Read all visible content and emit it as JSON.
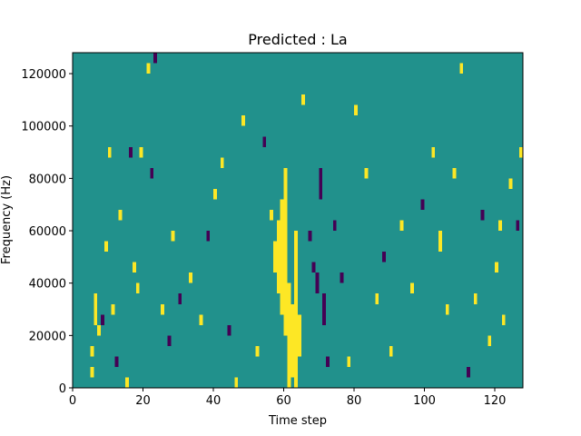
{
  "chart_data": {
    "type": "heatmap",
    "title": "Predicted : La",
    "xlabel": "Time step",
    "ylabel": "Frequency (Hz)",
    "xlim": [
      0,
      128
    ],
    "ylim": [
      0,
      128000
    ],
    "xticks": [
      0,
      20,
      40,
      60,
      80,
      100,
      120
    ],
    "yticks": [
      0,
      20000,
      40000,
      60000,
      80000,
      100000,
      120000
    ],
    "levels": {
      "low": -1,
      "mid": 0,
      "high": 1
    },
    "colormap": {
      "low": "#440154",
      "mid": "#21918c",
      "high": "#fde725"
    },
    "background_value": 0,
    "n_time_steps": 128,
    "n_freq_bins": 64,
    "cells": [
      {
        "t": 5,
        "f0": 4000,
        "f1": 8000,
        "v": 1
      },
      {
        "t": 5,
        "f0": 12000,
        "f1": 16000,
        "v": 1
      },
      {
        "t": 6,
        "f0": 24000,
        "f1": 36000,
        "v": 1
      },
      {
        "t": 7,
        "f0": 20000,
        "f1": 24000,
        "v": 1
      },
      {
        "t": 8,
        "f0": 24000,
        "f1": 28000,
        "v": -1
      },
      {
        "t": 9,
        "f0": 52000,
        "f1": 56000,
        "v": 1
      },
      {
        "t": 10,
        "f0": 88000,
        "f1": 92000,
        "v": 1
      },
      {
        "t": 11,
        "f0": 28000,
        "f1": 32000,
        "v": 1
      },
      {
        "t": 12,
        "f0": 8000,
        "f1": 12000,
        "v": -1
      },
      {
        "t": 13,
        "f0": 64000,
        "f1": 68000,
        "v": 1
      },
      {
        "t": 15,
        "f0": 0,
        "f1": 4000,
        "v": 1
      },
      {
        "t": 16,
        "f0": 88000,
        "f1": 92000,
        "v": -1
      },
      {
        "t": 17,
        "f0": 44000,
        "f1": 48000,
        "v": 1
      },
      {
        "t": 18,
        "f0": 36000,
        "f1": 40000,
        "v": 1
      },
      {
        "t": 19,
        "f0": 88000,
        "f1": 92000,
        "v": 1
      },
      {
        "t": 21,
        "f0": 120000,
        "f1": 124000,
        "v": 1
      },
      {
        "t": 22,
        "f0": 80000,
        "f1": 84000,
        "v": -1
      },
      {
        "t": 23,
        "f0": 124000,
        "f1": 128000,
        "v": -1
      },
      {
        "t": 25,
        "f0": 28000,
        "f1": 32000,
        "v": 1
      },
      {
        "t": 27,
        "f0": 16000,
        "f1": 20000,
        "v": -1
      },
      {
        "t": 28,
        "f0": 56000,
        "f1": 60000,
        "v": 1
      },
      {
        "t": 30,
        "f0": 32000,
        "f1": 36000,
        "v": -1
      },
      {
        "t": 33,
        "f0": 40000,
        "f1": 44000,
        "v": 1
      },
      {
        "t": 36,
        "f0": 24000,
        "f1": 28000,
        "v": 1
      },
      {
        "t": 38,
        "f0": 56000,
        "f1": 60000,
        "v": -1
      },
      {
        "t": 40,
        "f0": 72000,
        "f1": 76000,
        "v": 1
      },
      {
        "t": 42,
        "f0": 84000,
        "f1": 88000,
        "v": 1
      },
      {
        "t": 44,
        "f0": 20000,
        "f1": 24000,
        "v": -1
      },
      {
        "t": 46,
        "f0": 0,
        "f1": 4000,
        "v": 1
      },
      {
        "t": 48,
        "f0": 100000,
        "f1": 104000,
        "v": 1
      },
      {
        "t": 52,
        "f0": 12000,
        "f1": 16000,
        "v": 1
      },
      {
        "t": 54,
        "f0": 92000,
        "f1": 96000,
        "v": -1
      },
      {
        "t": 56,
        "f0": 64000,
        "f1": 68000,
        "v": 1
      },
      {
        "t": 57,
        "f0": 44000,
        "f1": 56000,
        "v": 1
      },
      {
        "t": 58,
        "f0": 36000,
        "f1": 64000,
        "v": 1
      },
      {
        "t": 59,
        "f0": 28000,
        "f1": 72000,
        "v": 1
      },
      {
        "t": 60,
        "f0": 20000,
        "f1": 84000,
        "v": 1
      },
      {
        "t": 61,
        "f0": 0,
        "f1": 40000,
        "v": 1
      },
      {
        "t": 62,
        "f0": 4000,
        "f1": 32000,
        "v": 1
      },
      {
        "t": 63,
        "f0": 0,
        "f1": 60000,
        "v": 1
      },
      {
        "t": 64,
        "f0": 12000,
        "f1": 28000,
        "v": 1
      },
      {
        "t": 65,
        "f0": 108000,
        "f1": 112000,
        "v": 1
      },
      {
        "t": 67,
        "f0": 56000,
        "f1": 60000,
        "v": -1
      },
      {
        "t": 68,
        "f0": 44000,
        "f1": 48000,
        "v": -1
      },
      {
        "t": 69,
        "f0": 36000,
        "f1": 44000,
        "v": -1
      },
      {
        "t": 70,
        "f0": 72000,
        "f1": 84000,
        "v": -1
      },
      {
        "t": 71,
        "f0": 24000,
        "f1": 36000,
        "v": -1
      },
      {
        "t": 72,
        "f0": 8000,
        "f1": 12000,
        "v": -1
      },
      {
        "t": 74,
        "f0": 60000,
        "f1": 64000,
        "v": -1
      },
      {
        "t": 76,
        "f0": 40000,
        "f1": 44000,
        "v": -1
      },
      {
        "t": 78,
        "f0": 8000,
        "f1": 12000,
        "v": 1
      },
      {
        "t": 80,
        "f0": 104000,
        "f1": 108000,
        "v": 1
      },
      {
        "t": 83,
        "f0": 80000,
        "f1": 84000,
        "v": 1
      },
      {
        "t": 86,
        "f0": 32000,
        "f1": 36000,
        "v": 1
      },
      {
        "t": 88,
        "f0": 48000,
        "f1": 52000,
        "v": -1
      },
      {
        "t": 90,
        "f0": 12000,
        "f1": 16000,
        "v": 1
      },
      {
        "t": 93,
        "f0": 60000,
        "f1": 64000,
        "v": 1
      },
      {
        "t": 96,
        "f0": 36000,
        "f1": 40000,
        "v": 1
      },
      {
        "t": 99,
        "f0": 68000,
        "f1": 72000,
        "v": -1
      },
      {
        "t": 102,
        "f0": 88000,
        "f1": 92000,
        "v": 1
      },
      {
        "t": 104,
        "f0": 52000,
        "f1": 60000,
        "v": 1
      },
      {
        "t": 106,
        "f0": 28000,
        "f1": 32000,
        "v": 1
      },
      {
        "t": 108,
        "f0": 80000,
        "f1": 84000,
        "v": 1
      },
      {
        "t": 110,
        "f0": 120000,
        "f1": 124000,
        "v": 1
      },
      {
        "t": 112,
        "f0": 4000,
        "f1": 8000,
        "v": -1
      },
      {
        "t": 114,
        "f0": 32000,
        "f1": 36000,
        "v": 1
      },
      {
        "t": 116,
        "f0": 64000,
        "f1": 68000,
        "v": -1
      },
      {
        "t": 118,
        "f0": 16000,
        "f1": 20000,
        "v": 1
      },
      {
        "t": 120,
        "f0": 44000,
        "f1": 48000,
        "v": 1
      },
      {
        "t": 121,
        "f0": 60000,
        "f1": 64000,
        "v": 1
      },
      {
        "t": 122,
        "f0": 24000,
        "f1": 28000,
        "v": 1
      },
      {
        "t": 124,
        "f0": 76000,
        "f1": 80000,
        "v": 1
      },
      {
        "t": 126,
        "f0": 60000,
        "f1": 64000,
        "v": -1
      },
      {
        "t": 127,
        "f0": 88000,
        "f1": 92000,
        "v": 1
      }
    ]
  }
}
